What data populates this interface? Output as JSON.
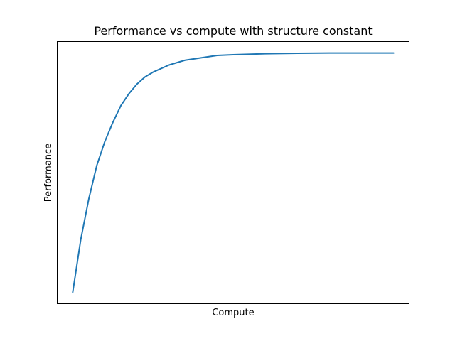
{
  "chart_data": {
    "type": "line",
    "title": "Performance vs compute with structure constant",
    "xlabel": "Compute",
    "ylabel": "Performance",
    "x_ticks": [],
    "y_ticks": [],
    "grid": false,
    "legend": "none",
    "xlim": [
      0,
      10
    ],
    "ylim": [
      0.04,
      1.04
    ],
    "series": [
      {
        "color": "#1f77b4",
        "x": [
          0,
          0.25,
          0.5,
          0.75,
          1,
          1.25,
          1.5,
          1.75,
          2,
          2.25,
          2.5,
          3,
          3.5,
          4,
          4.5,
          5,
          6,
          7,
          8,
          9,
          10
        ],
        "y": [
          0.0,
          0.22,
          0.39,
          0.53,
          0.63,
          0.71,
          0.78,
          0.83,
          0.87,
          0.9,
          0.92,
          0.95,
          0.97,
          0.98,
          0.99,
          0.993,
          0.997,
          0.999,
          1.0,
          1.0,
          1.0
        ]
      }
    ]
  }
}
